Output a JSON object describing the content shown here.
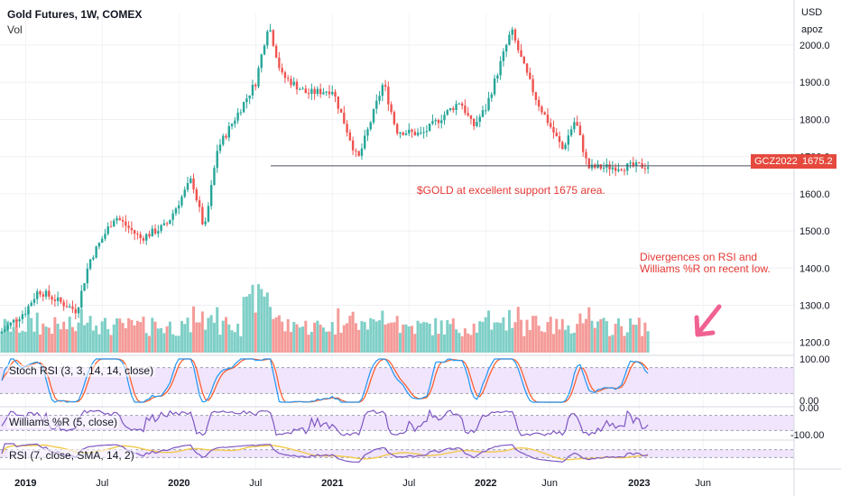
{
  "header": {
    "title": "Gold Futures, 1W, COMEX",
    "subtitle": "Vol"
  },
  "axis": {
    "currency": "USD",
    "unit": "apoz"
  },
  "colors": {
    "up": "#26a69a",
    "down": "#ef5350",
    "volume_up": "#7fcfc7",
    "volume_down": "#f49b98",
    "stoch_k": "#2196f3",
    "stoch_d": "#ff5722",
    "williams": "#7e57c2",
    "rsi": "#7e57c2",
    "rsi_sma": "#f2c94c",
    "band_fill": "#ede0fb",
    "annotation": "#e53935"
  },
  "chart_data": [
    {
      "type": "candlestick",
      "title": "Gold Futures, 1W, COMEX",
      "x_axis_labels": [
        "2019",
        "Jul",
        "2020",
        "Jul",
        "2021",
        "Jul",
        "2022",
        "Jun",
        "2023",
        "Jun"
      ],
      "y_ticks": [
        "2000.0",
        "1900.0",
        "1800.0",
        "1700.0",
        "1600.0",
        "1500.0",
        "1400.0",
        "1300.0",
        "1200.0"
      ],
      "ylim": [
        1175,
        2085
      ],
      "anchors": [
        {
          "date": "2018-11",
          "price": 1225
        },
        {
          "date": "2019-01",
          "price": 1285
        },
        {
          "date": "2019-02",
          "price": 1340
        },
        {
          "date": "2019-05",
          "price": 1285
        },
        {
          "date": "2019-06",
          "price": 1420
        },
        {
          "date": "2019-08",
          "price": 1540
        },
        {
          "date": "2019-10",
          "price": 1480
        },
        {
          "date": "2019-12",
          "price": 1515
        },
        {
          "date": "2020-02",
          "price": 1640
        },
        {
          "date": "2020-03",
          "price": 1500
        },
        {
          "date": "2020-04",
          "price": 1720
        },
        {
          "date": "2020-07",
          "price": 1900
        },
        {
          "date": "2020-08",
          "price": 2060
        },
        {
          "date": "2020-09",
          "price": 1920
        },
        {
          "date": "2020-11",
          "price": 1870
        },
        {
          "date": "2021-01",
          "price": 1880
        },
        {
          "date": "2021-03",
          "price": 1690
        },
        {
          "date": "2021-05",
          "price": 1900
        },
        {
          "date": "2021-06",
          "price": 1770
        },
        {
          "date": "2021-08",
          "price": 1760
        },
        {
          "date": "2021-11",
          "price": 1850
        },
        {
          "date": "2021-12",
          "price": 1780
        },
        {
          "date": "2022-01",
          "price": 1830
        },
        {
          "date": "2022-03",
          "price": 2040
        },
        {
          "date": "2022-04",
          "price": 1940
        },
        {
          "date": "2022-05",
          "price": 1850
        },
        {
          "date": "2022-07",
          "price": 1720
        },
        {
          "date": "2022-08",
          "price": 1800
        },
        {
          "date": "2022-09",
          "price": 1670
        },
        {
          "date": "2022-10",
          "price": 1675
        }
      ],
      "last_price": 1675.2,
      "price_line_label": "GCZ2022",
      "price_line_value": "1675.2"
    },
    {
      "type": "indicator",
      "name": "Stoch RSI (3, 3, 14, 14, close)",
      "range": [
        0,
        100
      ],
      "band": [
        20,
        80
      ],
      "y_ticks": [
        "100.00",
        "0.00"
      ]
    },
    {
      "type": "indicator",
      "name": "Williams %R (5, close)",
      "range": [
        -100,
        0
      ],
      "band": [
        -80,
        -20
      ],
      "y_ticks": [
        "0.00",
        "-100.00"
      ]
    },
    {
      "type": "indicator",
      "name": "RSI (7, close, SMA, 14, 2)",
      "range": [
        0,
        100
      ],
      "band": [
        30,
        70
      ]
    }
  ],
  "annotations": [
    {
      "text": "$GOLD at excellent support 1675 area."
    },
    {
      "text": "Divergences on RSI and Williams %R on recent low."
    }
  ]
}
